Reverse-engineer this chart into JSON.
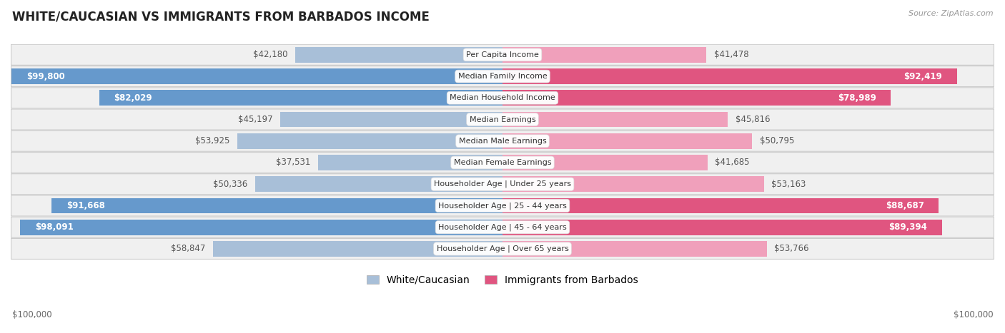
{
  "title": "WHITE/CAUCASIAN VS IMMIGRANTS FROM BARBADOS INCOME",
  "source": "Source: ZipAtlas.com",
  "categories": [
    "Per Capita Income",
    "Median Family Income",
    "Median Household Income",
    "Median Earnings",
    "Median Male Earnings",
    "Median Female Earnings",
    "Householder Age | Under 25 years",
    "Householder Age | 25 - 44 years",
    "Householder Age | 45 - 64 years",
    "Householder Age | Over 65 years"
  ],
  "white_values": [
    42180,
    99800,
    82029,
    45197,
    53925,
    37531,
    50336,
    91668,
    98091,
    58847
  ],
  "immigrant_values": [
    41478,
    92419,
    78989,
    45816,
    50795,
    41685,
    53163,
    88687,
    89394,
    53766
  ],
  "white_labels": [
    "$42,180",
    "$99,800",
    "$82,029",
    "$45,197",
    "$53,925",
    "$37,531",
    "$50,336",
    "$91,668",
    "$98,091",
    "$58,847"
  ],
  "immigrant_labels": [
    "$41,478",
    "$92,419",
    "$78,989",
    "$45,816",
    "$50,795",
    "$41,685",
    "$53,163",
    "$88,687",
    "$89,394",
    "$53,766"
  ],
  "max_value": 100000,
  "white_color": "#a8bfd8",
  "white_color_strong": "#6699cc",
  "immigrant_color": "#f0a0bb",
  "immigrant_color_strong": "#e05580",
  "bg_color": "#ffffff",
  "row_bg": "#f0f0f0",
  "label_fontsize": 8.5,
  "title_fontsize": 12,
  "legend_fontsize": 10,
  "xlabel_fontsize": 8.5,
  "white_label_inside_color": "#ffffff",
  "white_label_outside_color": "#555555",
  "immigrant_label_inside_color": "#ffffff",
  "immigrant_label_outside_color": "#555555",
  "inside_threshold": 65000,
  "legend_label_white": "White/Caucasian",
  "legend_label_immigrant": "Immigrants from Barbados"
}
